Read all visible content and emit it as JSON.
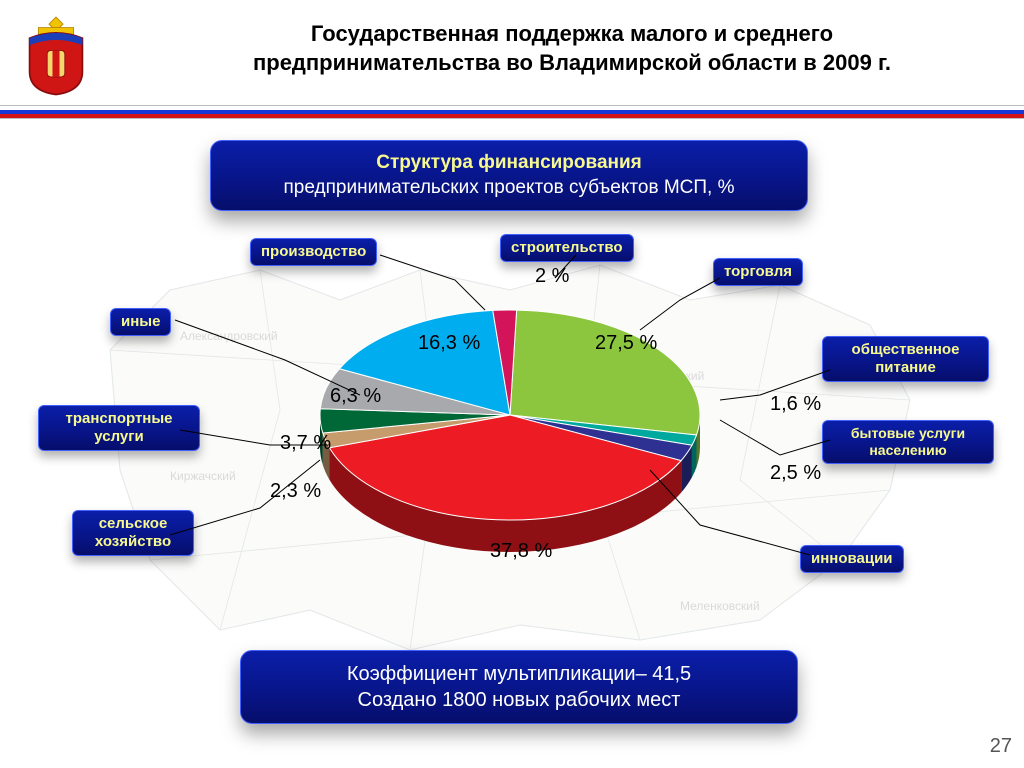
{
  "header": {
    "title_line1": "Государственная поддержка малого и среднего",
    "title_line2": "предпринимательства во Владимирской области в 2009 г."
  },
  "subtitle_panel": {
    "line1": "Структура финансирования",
    "line2": "предпринимательских проектов субъектов МСП, %"
  },
  "footer_panel": {
    "line1": "Коэффициент мультипликации– 41,5",
    "line2": "Создано 1800 новых рабочих мест"
  },
  "page_number": "27",
  "pie": {
    "type": "pie-3d",
    "background_color": "#ffffff",
    "label_fontsize": 20,
    "slices": [
      {
        "name": "торговля",
        "label": "торговля",
        "value": 27.5,
        "pct_text": "27,5 %",
        "color": "#8cc63f"
      },
      {
        "name": "общественное-питание",
        "label": "общественное\nпитание",
        "value": 1.6,
        "pct_text": "1,6 %",
        "color": "#00a99d"
      },
      {
        "name": "бытовые-услуги",
        "label": "бытовые услуги\nнаселению",
        "value": 2.5,
        "pct_text": "2,5 %",
        "color": "#2e3192"
      },
      {
        "name": "инновации",
        "label": "инновации",
        "value": 37.8,
        "pct_text": "37,8 %",
        "color": "#ed1c24"
      },
      {
        "name": "сельское-хозяйство",
        "label": "сельское\nхозяйство",
        "value": 2.3,
        "pct_text": "2,3 %",
        "color": "#c69c6d"
      },
      {
        "name": "транспортные-услуги",
        "label": "транспортные\nуслуги",
        "value": 3.7,
        "pct_text": "3,7 %",
        "color": "#006837"
      },
      {
        "name": "иные",
        "label": "иные",
        "value": 6.3,
        "pct_text": "6,3 %",
        "color": "#a7a9ac"
      },
      {
        "name": "производство",
        "label": "производство",
        "value": 16.3,
        "pct_text": "16,3 %",
        "color": "#00aeef"
      },
      {
        "name": "строительство",
        "label": "строительство",
        "value": 2.0,
        "pct_text": "2 %",
        "color": "#d4145a"
      }
    ]
  },
  "label_box": {
    "bg": "#08158a",
    "text_color": "#f7f98f",
    "border": "#4260ff",
    "fontsize": 15
  },
  "tricolor": {
    "colors": [
      "#ffffff",
      "#1838d6",
      "#d41414"
    ]
  },
  "crest": {
    "crown": "#f0c400",
    "shield": "#d01515",
    "accent": "#1b3fb8"
  }
}
